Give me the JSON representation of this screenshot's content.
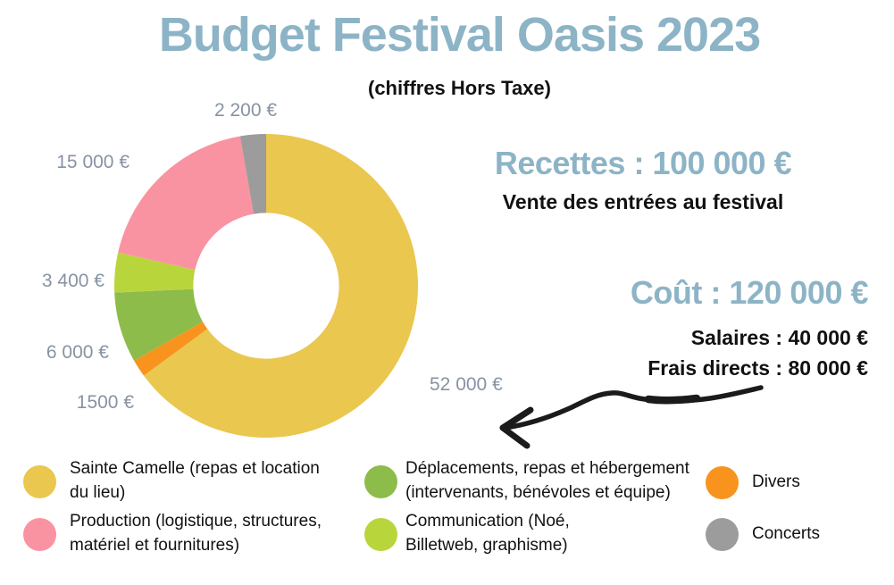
{
  "header": {
    "title": "Budget Festival Oasis 2023",
    "subtitle": "(chiffres Hors Taxe)"
  },
  "revenue": {
    "heading": "Recettes : 100 000 €",
    "detail": "Vente des entrées au festival"
  },
  "cost": {
    "heading": "Coût : 120 000 €",
    "line1": "Salaires : 40 000 €",
    "line2": "Frais directs : 80 000 €"
  },
  "colors": {
    "accent_blue": "#8DB4C6",
    "text_black": "#111111",
    "value_label_gray": "#8793A3",
    "arrow_black": "#1b1b1b"
  },
  "chart_data": {
    "type": "pie",
    "title": "Budget Festival Oasis 2023 (chiffres Hors Taxe)",
    "unit": "EUR",
    "donut_hole_ratio": 0.48,
    "start_angle_deg": 0,
    "direction": "clockwise",
    "legend_position": "bottom",
    "segments": [
      {
        "name": "Sainte Camelle (repas et location du lieu)",
        "value": 52000,
        "label": "52 000 €",
        "color": "#EAC74F"
      },
      {
        "name": "Divers",
        "value": 1500,
        "label": "1500 €",
        "color": "#F8941E"
      },
      {
        "name": "Déplacements, repas et hébergement (intervenants, bénévoles et équipe)",
        "value": 6000,
        "label": "6 000 €",
        "color": "#8DBC4A"
      },
      {
        "name": "Communication (Noé, Billetweb, graphisme)",
        "value": 3400,
        "label": "3 400 €",
        "color": "#B9D53C"
      },
      {
        "name": "Production (logistique, structures, matériel et fournitures)",
        "value": 15000,
        "label": "15 000 €",
        "color": "#FA93A1"
      },
      {
        "name": "Concerts",
        "value": 2200,
        "label": "2 200 €",
        "color": "#9C9C9C"
      }
    ]
  },
  "legend": {
    "items": [
      {
        "label": "Sainte Camelle (repas et location\ndu lieu)",
        "color": "#EAC74F"
      },
      {
        "label": "Production (logistique, structures,\nmatériel et fournitures)",
        "color": "#FA93A1"
      },
      {
        "label": "Déplacements, repas et hébergement\n(intervenants, bénévoles et équipe)",
        "color": "#8DBC4A"
      },
      {
        "label": "Communication (Noé,\nBilletweb, graphisme)",
        "color": "#B9D53C"
      },
      {
        "label": "Divers",
        "color": "#F8941E"
      },
      {
        "label": "Concerts",
        "color": "#9C9C9C"
      }
    ]
  }
}
